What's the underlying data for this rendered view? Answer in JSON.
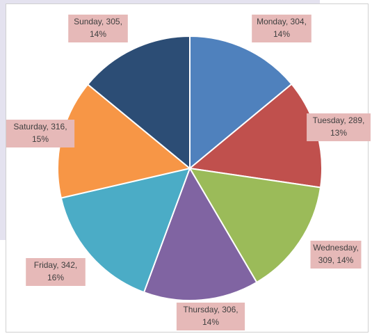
{
  "chart_data": {
    "type": "pie",
    "categories": [
      "Monday",
      "Tuesday",
      "Wednesday",
      "Thursday",
      "Friday",
      "Saturday",
      "Sunday"
    ],
    "values": [
      304,
      289,
      309,
      306,
      342,
      316,
      305
    ],
    "value_labels": [
      "Monday, 304, 14%",
      "Tuesday, 289, 13%",
      "Wednesday, 309, 14%",
      "Thursday, 306, 14%",
      "Friday, 342, 16%",
      "Saturday, 316, 15%",
      "Sunday, 305, 14%"
    ],
    "colors": [
      "#4f81bd",
      "#c0504d",
      "#9bbb59",
      "#8064a2",
      "#4bacc6",
      "#f79646",
      "#2c4d75"
    ]
  }
}
